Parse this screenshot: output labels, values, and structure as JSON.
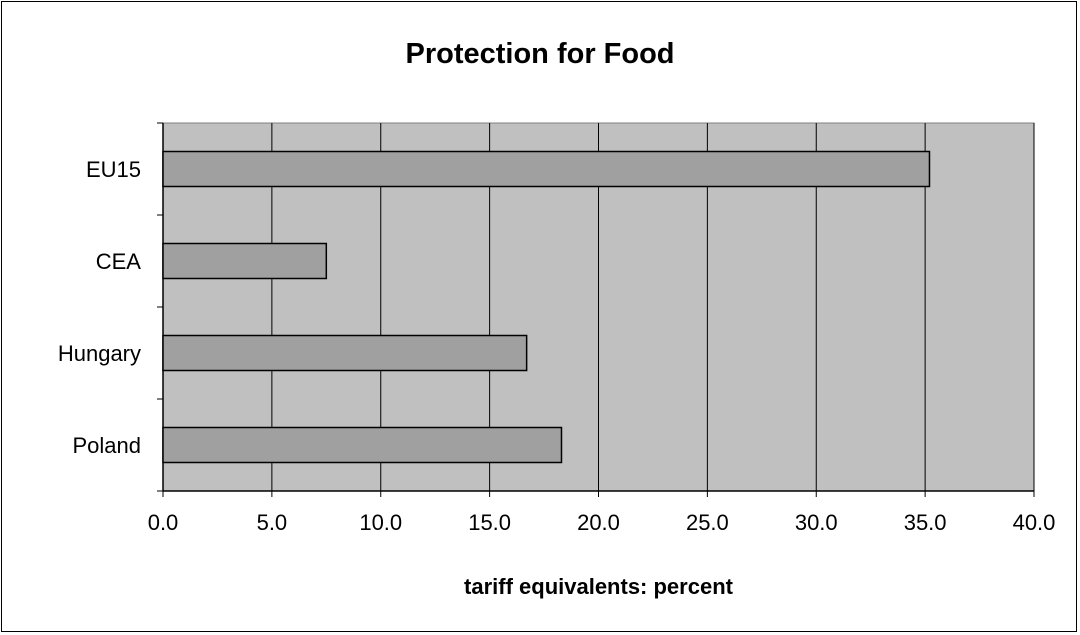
{
  "chart_data": {
    "type": "bar",
    "orientation": "horizontal",
    "title": "Protection for Food",
    "xlabel": "tariff equivalents: percent",
    "ylabel": "",
    "categories": [
      "EU15",
      "CEA",
      "Hungary",
      "Poland"
    ],
    "values": [
      35.2,
      7.5,
      16.7,
      18.3
    ],
    "xlim": [
      0,
      40
    ],
    "xticks": [
      "0.0",
      "5.0",
      "10.0",
      "15.0",
      "20.0",
      "25.0",
      "30.0",
      "35.0",
      "40.0"
    ],
    "grid": "vertical",
    "legend": "none",
    "colors": {
      "plot_background": "#c0c0c0",
      "bar_fill": "#a0a0a0",
      "bar_stroke": "#000000",
      "grid": "#000000"
    }
  }
}
